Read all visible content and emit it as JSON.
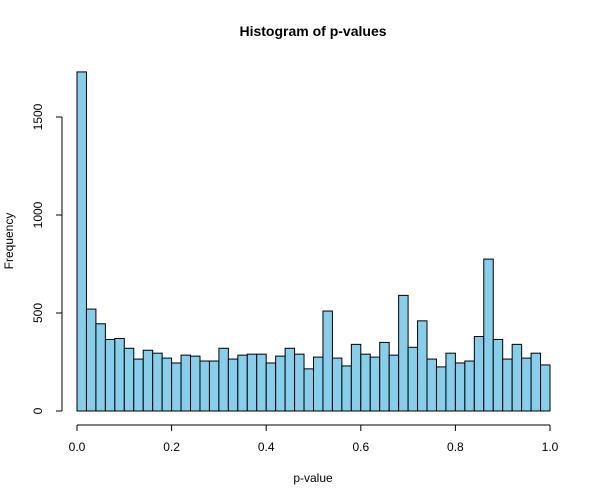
{
  "chart_data": {
    "type": "bar",
    "title": "Histogram of p-values",
    "xlabel": "p-value",
    "ylabel": "Frequency",
    "xlim": [
      0,
      1
    ],
    "ylim": [
      0,
      1750
    ],
    "bin_width": 0.02,
    "bin_starts": [
      0.0,
      0.02,
      0.04,
      0.06,
      0.08,
      0.1,
      0.12,
      0.14,
      0.16,
      0.18,
      0.2,
      0.22,
      0.24,
      0.26,
      0.28,
      0.3,
      0.32,
      0.34,
      0.36,
      0.38,
      0.4,
      0.42,
      0.44,
      0.46,
      0.48,
      0.5,
      0.52,
      0.54,
      0.56,
      0.58,
      0.6,
      0.62,
      0.64,
      0.66,
      0.68,
      0.7,
      0.72,
      0.74,
      0.76,
      0.78,
      0.8,
      0.82,
      0.84,
      0.86,
      0.88,
      0.9,
      0.92,
      0.94,
      0.96,
      0.98
    ],
    "values": [
      1730,
      520,
      445,
      365,
      370,
      320,
      265,
      310,
      295,
      270,
      245,
      285,
      280,
      255,
      255,
      320,
      265,
      285,
      290,
      290,
      245,
      280,
      320,
      290,
      215,
      275,
      510,
      270,
      230,
      340,
      290,
      275,
      350,
      285,
      590,
      325,
      460,
      265,
      225,
      295,
      245,
      255,
      380,
      775,
      365,
      265,
      340,
      270,
      295,
      235
    ],
    "x_ticks": [
      "0.0",
      "0.2",
      "0.4",
      "0.6",
      "0.8",
      "1.0"
    ],
    "x_tick_values": [
      0,
      0.2,
      0.4,
      0.6,
      0.8,
      1.0
    ],
    "y_ticks": [
      "0",
      "500",
      "1000",
      "1500"
    ],
    "y_tick_values": [
      0,
      500,
      1000,
      1500
    ],
    "grid": false,
    "colors": {
      "bar_fill": "#87ceeb",
      "bar_stroke": "#000000"
    }
  }
}
